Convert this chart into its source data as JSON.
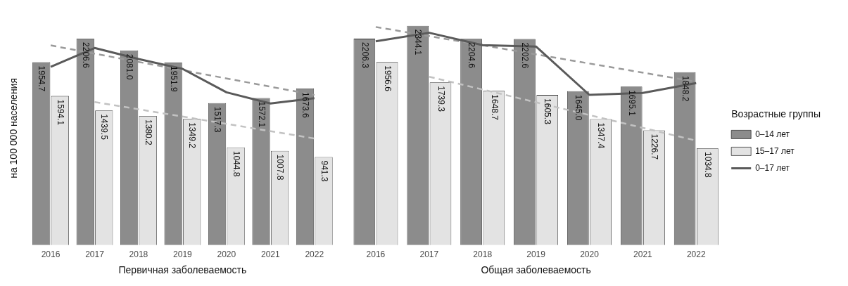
{
  "chart_data": [
    {
      "type": "bar",
      "xlabel": "Первичная заболеваемость",
      "ylabel": "на 100 000 населения",
      "categories": [
        "2016",
        "2017",
        "2018",
        "2019",
        "2020",
        "2021",
        "2022"
      ],
      "tick_labels": "x",
      "grid": false,
      "legend": false,
      "marker": "none",
      "series": [
        {
          "color": "#8c8c8c",
          "values": [
            1954.7,
            2206.6,
            2081.0,
            1951.9,
            1517.3,
            1572.1,
            1673.6
          ],
          "value_labels": [
            "1954.7",
            "2206.6",
            "2081.0",
            "1951.9",
            "1517.3",
            "1572.1",
            "1673.6"
          ]
        },
        {
          "color": "#e3e3e3",
          "values": [
            1594.1,
            1439.5,
            1380.2,
            1349.2,
            1044.8,
            1007.8,
            941.3
          ],
          "value_labels": [
            "1594.1",
            "1439.5",
            "1380.2",
            "1349.2",
            "1044.8",
            "1007.8",
            "941.3"
          ]
        },
        {
          "type": "line",
          "color": "#5a5a5a",
          "values": [
            1905,
            2107,
            1989,
            1884,
            1633,
            1514,
            1570
          ]
        },
        {
          "type": "line",
          "color": "#9a9a9a",
          "line_style": "dashed",
          "values": [
            2135,
            null,
            null,
            null,
            null,
            null,
            1605
          ]
        },
        {
          "type": "line",
          "color": "#c2c2c2",
          "line_style": "dashed",
          "values": [
            null,
            1530,
            null,
            null,
            null,
            null,
            1140
          ]
        }
      ]
    },
    {
      "type": "bar",
      "xlabel": "Общая заболеваемость",
      "categories": [
        "2016",
        "2017",
        "2018",
        "2019",
        "2020",
        "2021",
        "2022"
      ],
      "tick_labels": "x",
      "grid": false,
      "legend": "right",
      "legend_title": "Возрастные группы",
      "marker": "none",
      "series": [
        {
          "name": "0–14 лет",
          "color": "#8c8c8c",
          "values": [
            2206.3,
            2344.1,
            2204.6,
            2202.6,
            1645.0,
            1695.1,
            1848.2
          ],
          "value_labels": [
            "2206.3",
            "2344.1",
            "2204.6",
            "2202.6",
            "1645.0",
            "1695.1",
            "1848.2"
          ]
        },
        {
          "name": "15–17 лет",
          "color": "#e3e3e3",
          "values": [
            1956.6,
            1739.3,
            1648.7,
            1605.3,
            1347.4,
            1226.7,
            1034.8
          ],
          "value_labels": [
            "1956.6",
            "1739.3",
            "1648.7",
            "1605.3",
            "1347.4",
            "1226.7",
            "1034.8"
          ]
        },
        {
          "type": "line",
          "name": "0–17 лет",
          "color": "#5a5a5a",
          "values": [
            2179,
            2270,
            2137,
            2123,
            1606,
            1627,
            1732
          ]
        },
        {
          "type": "line",
          "color": "#9a9a9a",
          "line_style": "dashed",
          "values": [
            2332,
            null,
            null,
            null,
            null,
            null,
            1746
          ]
        },
        {
          "type": "line",
          "color": "#c2c2c2",
          "line_style": "dashed",
          "values": [
            null,
            1800,
            null,
            null,
            null,
            null,
            1117
          ]
        }
      ]
    }
  ]
}
